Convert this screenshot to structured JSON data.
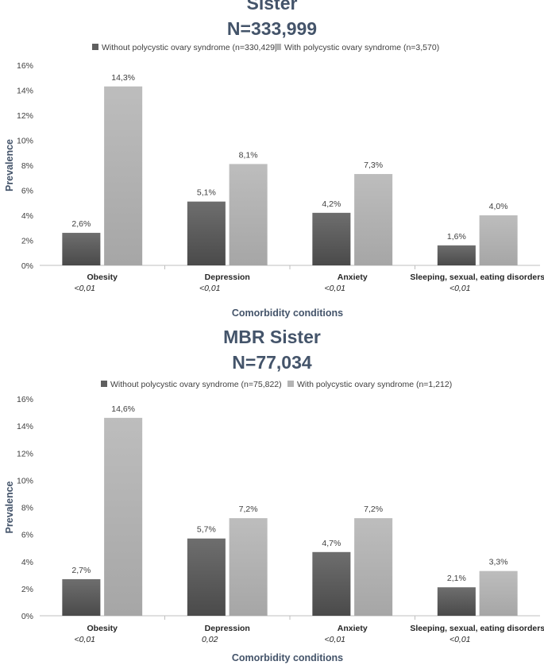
{
  "colors": {
    "without": "#5f5f5f",
    "with": "#b4b4b4",
    "title": "#44546a",
    "text": "#404040",
    "axis": "#bfbfbf"
  },
  "chart_data": [
    {
      "type": "bar",
      "title": "Sister",
      "subtitle": "N=333,999",
      "xlabel": "Comorbidity conditions",
      "ylabel": "Prevalence",
      "ylim": [
        0,
        16
      ],
      "yticks": [
        "0%",
        "2%",
        "4%",
        "6%",
        "8%",
        "10%",
        "12%",
        "14%",
        "16%"
      ],
      "grid": false,
      "legend_position": "top",
      "categories": [
        "Obesity",
        "Depression",
        "Anxiety",
        "Sleeping, sexual, eating disorders"
      ],
      "pvalues": [
        "<0,01",
        "<0,01",
        "<0,01",
        "<0,01"
      ],
      "series": [
        {
          "name": "Without polycystic ovary syndrome (n=330,429)",
          "values": [
            2.6,
            5.1,
            4.2,
            1.6
          ],
          "labels": [
            "2,6%",
            "5,1%",
            "4,2%",
            "1,6%"
          ]
        },
        {
          "name": "With polycystic ovary syndrome (n=3,570)",
          "values": [
            14.3,
            8.1,
            7.3,
            4.0
          ],
          "labels": [
            "14,3%",
            "8,1%",
            "7,3%",
            "4,0%"
          ]
        }
      ]
    },
    {
      "type": "bar",
      "title": "MBR Sister",
      "subtitle": "N=77,034",
      "xlabel": "Comorbidity conditions",
      "ylabel": "Prevalence",
      "ylim": [
        0,
        16
      ],
      "yticks": [
        "0%",
        "2%",
        "4%",
        "6%",
        "8%",
        "10%",
        "12%",
        "14%",
        "16%"
      ],
      "grid": false,
      "legend_position": "top",
      "categories": [
        "Obesity",
        "Depression",
        "Anxiety",
        "Sleeping, sexual, eating disorders"
      ],
      "pvalues": [
        "<0,01",
        "0,02",
        "<0,01",
        "<0,01"
      ],
      "series": [
        {
          "name": "Without polycystic ovary syndrome (n=75,822)",
          "values": [
            2.7,
            5.7,
            4.7,
            2.1
          ],
          "labels": [
            "2,7%",
            "5,7%",
            "4,7%",
            "2,1%"
          ]
        },
        {
          "name": "With polycystic ovary syndrome (n=1,212)",
          "values": [
            14.6,
            7.2,
            7.2,
            3.3
          ],
          "labels": [
            "14,6%",
            "7,2%",
            "7,2%",
            "3,3%"
          ]
        }
      ]
    }
  ]
}
